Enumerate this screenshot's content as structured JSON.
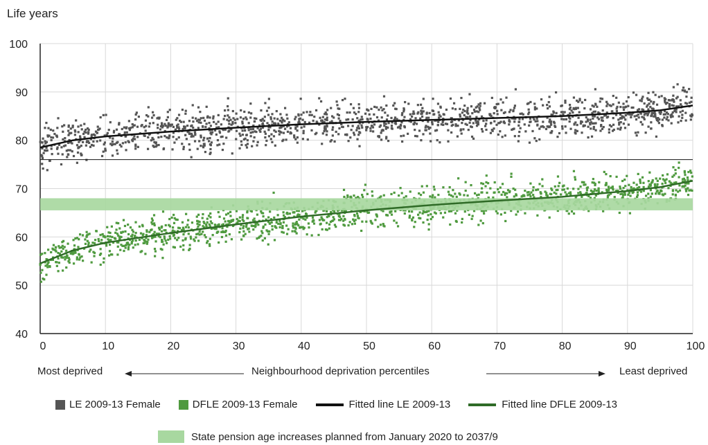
{
  "chart_data": {
    "type": "scatter",
    "ylabel": "Life years",
    "xlabel": "Neighbourhood deprivation percentiles",
    "x_left_label": "Most deprived",
    "x_right_label": "Least deprived",
    "xlim": [
      0,
      100
    ],
    "ylim": [
      40,
      100
    ],
    "x_ticks": [
      0,
      10,
      20,
      30,
      40,
      50,
      60,
      70,
      80,
      90,
      100
    ],
    "y_ticks": [
      40,
      50,
      60,
      70,
      80,
      90,
      100
    ],
    "grid": true,
    "legend_placement": "bottom",
    "band": {
      "name": "State pension age increases planned from January 2020 to 2037/9",
      "y_range": [
        65.5,
        68
      ],
      "color": "#a8d8a0"
    },
    "series": [
      {
        "name": "LE 2009-13 Female",
        "type": "scatter",
        "color": "#555555",
        "approx_trend": [
          [
            0,
            78.5
          ],
          [
            5,
            80
          ],
          [
            10,
            80.8
          ],
          [
            20,
            81.8
          ],
          [
            30,
            82.6
          ],
          [
            40,
            83.3
          ],
          [
            50,
            83.8
          ],
          [
            60,
            84.2
          ],
          [
            70,
            84.6
          ],
          [
            80,
            85.0
          ],
          [
            90,
            85.7
          ],
          [
            95,
            86.2
          ],
          [
            100,
            87.2
          ]
        ],
        "spread": 2.8
      },
      {
        "name": "DFLE 2009-13 Female",
        "type": "scatter",
        "color": "#4f9a3f",
        "approx_trend": [
          [
            0,
            54.5
          ],
          [
            5,
            57.2
          ],
          [
            10,
            58.8
          ],
          [
            20,
            60.8
          ],
          [
            30,
            62.6
          ],
          [
            40,
            64.2
          ],
          [
            50,
            65.5
          ],
          [
            60,
            66.6
          ],
          [
            70,
            67.5
          ],
          [
            80,
            68.3
          ],
          [
            90,
            69.5
          ],
          [
            95,
            70.3
          ],
          [
            100,
            71.6
          ]
        ],
        "spread": 2.5
      },
      {
        "name": "Fitted line LE 2009-13",
        "type": "line",
        "color": "#111111",
        "x": [
          0,
          5,
          10,
          20,
          30,
          40,
          50,
          60,
          70,
          80,
          90,
          95,
          100
        ],
        "y": [
          78.5,
          80,
          80.8,
          81.8,
          82.6,
          83.3,
          83.8,
          84.2,
          84.6,
          85.0,
          85.7,
          86.2,
          87.2
        ]
      },
      {
        "name": "Fitted line DFLE 2009-13",
        "type": "line",
        "color": "#2f6b27",
        "x": [
          0,
          5,
          10,
          20,
          30,
          40,
          50,
          60,
          70,
          80,
          90,
          95,
          100
        ],
        "y": [
          54.5,
          57.2,
          58.8,
          60.8,
          62.6,
          64.2,
          65.5,
          66.6,
          67.5,
          68.3,
          69.5,
          70.3,
          71.6
        ]
      }
    ]
  },
  "colors": {
    "le_scatter": "#555555",
    "dfle_scatter": "#4f9a3f",
    "le_line": "#111111",
    "dfle_line": "#2f6b27",
    "band": "#a8d8a0",
    "grid": "#d8d8d8"
  }
}
